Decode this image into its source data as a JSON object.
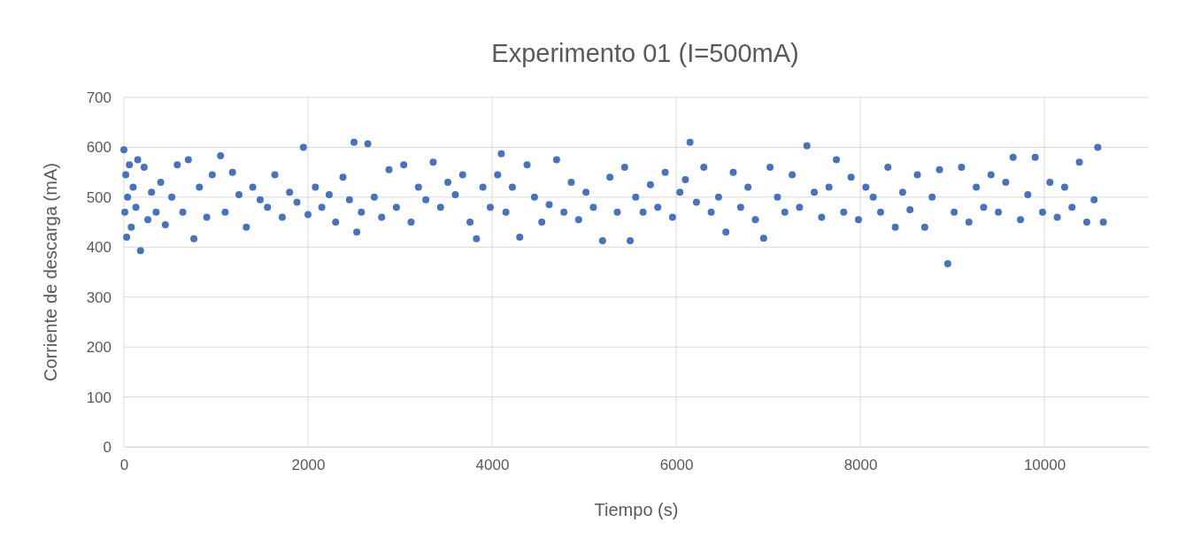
{
  "chart_data": {
    "type": "scatter",
    "title": "Experimento 01 (I=500mA)",
    "xlabel": "Tiempo (s)",
    "ylabel": "Corriente de descarga (mA)",
    "xlim": [
      0,
      11134
    ],
    "ylim": [
      0,
      700
    ],
    "xticks": [
      0,
      2000,
      4000,
      6000,
      8000,
      10000
    ],
    "yticks": [
      0,
      100,
      200,
      300,
      400,
      500,
      600,
      700
    ],
    "grid": true,
    "marker": "circle",
    "series": [
      {
        "color": "#4472c4",
        "x": [
          0,
          10,
          20,
          30,
          40,
          60,
          80,
          100,
          130,
          150,
          180,
          220,
          260,
          300,
          350,
          400,
          450,
          520,
          580,
          640,
          700,
          760,
          820,
          900,
          960,
          1050,
          1100,
          1180,
          1250,
          1330,
          1400,
          1480,
          1560,
          1640,
          1720,
          1800,
          1880,
          1950,
          2000,
          2080,
          2150,
          2230,
          2300,
          2380,
          2450,
          2500,
          2530,
          2580,
          2650,
          2720,
          2800,
          2880,
          2960,
          3040,
          3120,
          3200,
          3280,
          3360,
          3440,
          3520,
          3600,
          3680,
          3760,
          3830,
          3900,
          3980,
          4060,
          4100,
          4150,
          4220,
          4300,
          4380,
          4460,
          4540,
          4620,
          4700,
          4780,
          4860,
          4940,
          5020,
          5100,
          5200,
          5280,
          5360,
          5440,
          5500,
          5560,
          5640,
          5720,
          5800,
          5880,
          5960,
          6040,
          6100,
          6150,
          6220,
          6300,
          6380,
          6460,
          6540,
          6620,
          6700,
          6780,
          6860,
          6950,
          7020,
          7100,
          7180,
          7260,
          7340,
          7420,
          7500,
          7580,
          7660,
          7740,
          7820,
          7900,
          7980,
          8060,
          8140,
          8220,
          8300,
          8380,
          8460,
          8540,
          8620,
          8700,
          8780,
          8860,
          8950,
          9020,
          9100,
          9180,
          9260,
          9340,
          9420,
          9500,
          9580,
          9660,
          9740,
          9820,
          9900,
          9980,
          10060,
          10140,
          10220,
          10300,
          10380,
          10460,
          10540,
          10580,
          10640
        ],
        "values": [
          595,
          470,
          545,
          420,
          500,
          565,
          440,
          520,
          480,
          575,
          393,
          560,
          455,
          510,
          470,
          530,
          445,
          500,
          565,
          470,
          575,
          417,
          520,
          460,
          545,
          583,
          470,
          550,
          505,
          440,
          520,
          495,
          480,
          545,
          460,
          510,
          490,
          600,
          465,
          520,
          480,
          505,
          450,
          540,
          495,
          610,
          430,
          470,
          607,
          500,
          460,
          555,
          480,
          565,
          450,
          520,
          495,
          570,
          480,
          530,
          505,
          545,
          450,
          417,
          520,
          480,
          545,
          587,
          470,
          520,
          420,
          565,
          500,
          450,
          485,
          575,
          470,
          530,
          455,
          510,
          480,
          413,
          540,
          470,
          560,
          413,
          500,
          470,
          525,
          480,
          550,
          460,
          510,
          535,
          610,
          490,
          560,
          470,
          500,
          430,
          550,
          480,
          520,
          455,
          418,
          560,
          500,
          470,
          545,
          480,
          603,
          510,
          460,
          520,
          575,
          470,
          540,
          455,
          520,
          500,
          470,
          560,
          440,
          510,
          475,
          545,
          440,
          500,
          555,
          367,
          470,
          560,
          450,
          520,
          480,
          545,
          470,
          530,
          580,
          455,
          505,
          580,
          470,
          530,
          460,
          520,
          480,
          570,
          450,
          495,
          600,
          450
        ]
      }
    ]
  }
}
